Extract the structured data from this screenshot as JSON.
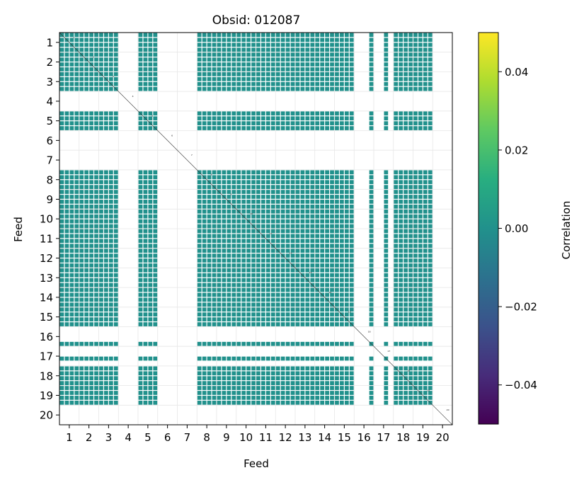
{
  "chart_data": {
    "type": "heatmap",
    "title": "Obsid: 012087",
    "xlabel": "Feed",
    "ylabel": "Feed",
    "x_ticks": [
      "1",
      "2",
      "3",
      "4",
      "5",
      "6",
      "7",
      "8",
      "9",
      "10",
      "11",
      "12",
      "13",
      "14",
      "15",
      "16",
      "17",
      "18",
      "19",
      "20"
    ],
    "y_ticks": [
      "1",
      "2",
      "3",
      "4",
      "5",
      "6",
      "7",
      "8",
      "9",
      "10",
      "11",
      "12",
      "13",
      "14",
      "15",
      "16",
      "17",
      "18",
      "19",
      "20"
    ],
    "colorbar": {
      "label": "Correlation",
      "range": [
        -0.05,
        0.05
      ],
      "ticks": [
        "0.04",
        "0.02",
        "0.00",
        "−0.02",
        "−0.04"
      ],
      "tick_values": [
        0.04,
        0.02,
        0.0,
        -0.02,
        -0.04
      ],
      "colormap": "viridis"
    },
    "cell_color": "#21918c",
    "grid_color": "#e6e6e6",
    "blocks_per_feed": 4,
    "dead_feeds": [
      4,
      6,
      7,
      20
    ],
    "partial_feeds": [
      16,
      17
    ],
    "partial_active_subblocks": {
      "16": [
        3
      ],
      "17": [
        2
      ]
    },
    "value": 0.0
  }
}
